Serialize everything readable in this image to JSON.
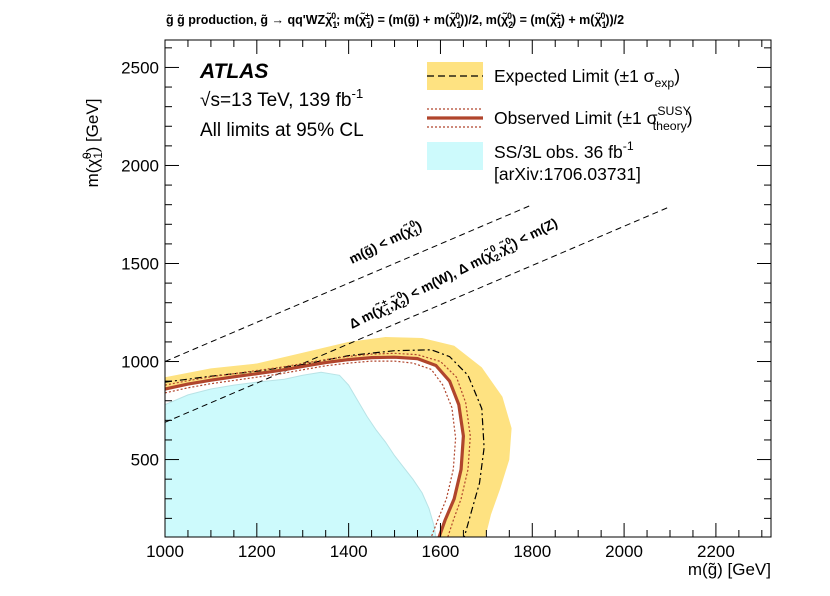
{
  "chart_data": {
    "type": "line",
    "title_parts": {
      "a": "g̃ g̃ production, g̃ → qq'WZχ̃",
      "a_sub": "1",
      "a_sup": "0",
      "b": "; m(χ̃",
      "b_sub": "1",
      "b_sup": "±",
      "c": ") = (m(g̃) + m(χ̃",
      "c_sub": "1",
      "c_sup": "0",
      "d": "))/2, m(χ̃",
      "d_sub": "2",
      "d_sup": "0",
      "e": ") = (m(χ̃",
      "e_sub": "1",
      "e_sup": "±",
      "f": ") + m(χ̃",
      "f_sub": "1",
      "f_sup": "0",
      "g": "))/2"
    },
    "xlabel": "m(g̃) [GeV]",
    "ylabel_parts": {
      "a": "m(χ̃",
      "a_sub": "1",
      "a_sup": "0",
      "b": ") [GeV]"
    },
    "xlim": [
      1000,
      2320
    ],
    "ylim": [
      105,
      2640
    ],
    "x_ticks": [
      1000,
      1200,
      1400,
      1600,
      1800,
      2000,
      2200
    ],
    "y_ticks": [
      500,
      1000,
      1500,
      2000,
      2500
    ],
    "x_minor_step": 50,
    "y_minor_step": 100,
    "atlas_label": "ATLAS",
    "energy_label_parts": {
      "root": "√",
      "s": "s=13 TeV, 139 fb",
      "sup": "-1"
    },
    "cl_label": "All limits at 95% CL",
    "legend": {
      "expected_main": "Expected Limit (±1 σ",
      "expected_sub": "exp",
      "expected_end": ")",
      "observed_main": "Observed Limit (±1 σ",
      "observed_sup": "SUSY",
      "observed_sub": "theory",
      "observed_end": ")",
      "ss3l_line1": "SS/3L obs. 36 fb",
      "ss3l_sup": "-1",
      "ss3l_line2": "[arXiv:1706.03731]"
    },
    "annotations": {
      "diag1_parts": {
        "a": "m(g̃) < m(χ̃",
        "a_sub": "1",
        "a_sup": "0",
        "b": ")"
      },
      "diag2_parts": {
        "a": "Δ m(χ̃",
        "a_sub": "1",
        "a_sup": "±",
        "b": ",χ̃",
        "b_sub": "2",
        "b_sup": "0",
        "c": ") < m(W), Δ m(χ̃",
        "c_sub": "2",
        "c_sup": "0",
        "d": ",χ̃",
        "d_sub": "1",
        "d_sup": "0",
        "e": ") < m(Z)"
      }
    },
    "colors": {
      "band": "#fee281",
      "observed": "#b0452c",
      "ss3l": "#cdfafc",
      "axis": "#000000"
    },
    "series": [
      {
        "name": "Observed Limit",
        "points": [
          [
            1000,
            860
          ],
          [
            1050,
            885
          ],
          [
            1100,
            905
          ],
          [
            1150,
            922
          ],
          [
            1200,
            938
          ],
          [
            1250,
            955
          ],
          [
            1300,
            975
          ],
          [
            1350,
            995
          ],
          [
            1400,
            1010
          ],
          [
            1450,
            1020
          ],
          [
            1500,
            1022
          ],
          [
            1550,
            1015
          ],
          [
            1590,
            980
          ],
          [
            1620,
            900
          ],
          [
            1640,
            780
          ],
          [
            1650,
            620
          ],
          [
            1645,
            450
          ],
          [
            1630,
            300
          ],
          [
            1610,
            190
          ],
          [
            1597,
            105
          ]
        ]
      },
      {
        "name": "Observed Limit +1σ theory",
        "points": [
          [
            1000,
            880
          ],
          [
            1050,
            902
          ],
          [
            1100,
            922
          ],
          [
            1150,
            938
          ],
          [
            1200,
            954
          ],
          [
            1250,
            970
          ],
          [
            1300,
            990
          ],
          [
            1350,
            1010
          ],
          [
            1400,
            1026
          ],
          [
            1450,
            1038
          ],
          [
            1500,
            1042
          ],
          [
            1550,
            1035
          ],
          [
            1600,
            1000
          ],
          [
            1635,
            920
          ],
          [
            1655,
            790
          ],
          [
            1665,
            620
          ],
          [
            1660,
            450
          ],
          [
            1645,
            300
          ],
          [
            1628,
            190
          ],
          [
            1616,
            105
          ]
        ]
      },
      {
        "name": "Observed Limit -1σ theory",
        "points": [
          [
            1000,
            840
          ],
          [
            1050,
            866
          ],
          [
            1100,
            887
          ],
          [
            1150,
            904
          ],
          [
            1200,
            920
          ],
          [
            1250,
            937
          ],
          [
            1300,
            958
          ],
          [
            1350,
            978
          ],
          [
            1400,
            992
          ],
          [
            1450,
            1002
          ],
          [
            1500,
            1002
          ],
          [
            1540,
            992
          ],
          [
            1580,
            960
          ],
          [
            1605,
            880
          ],
          [
            1625,
            765
          ],
          [
            1633,
            610
          ],
          [
            1628,
            450
          ],
          [
            1613,
            300
          ],
          [
            1594,
            190
          ],
          [
            1580,
            105
          ]
        ]
      },
      {
        "name": "Expected Limit",
        "points": [
          [
            1000,
            895
          ],
          [
            1100,
            925
          ],
          [
            1200,
            950
          ],
          [
            1300,
            985
          ],
          [
            1400,
            1030
          ],
          [
            1500,
            1055
          ],
          [
            1580,
            1060
          ],
          [
            1620,
            1025
          ],
          [
            1660,
            930
          ],
          [
            1690,
            760
          ],
          [
            1695,
            560
          ],
          [
            1685,
            380
          ],
          [
            1668,
            240
          ],
          [
            1652,
            105
          ]
        ]
      },
      {
        "name": "Expected band upper",
        "points": [
          [
            1000,
            920
          ],
          [
            1100,
            965
          ],
          [
            1200,
            990
          ],
          [
            1300,
            1045
          ],
          [
            1400,
            1100
          ],
          [
            1480,
            1125
          ],
          [
            1560,
            1120
          ],
          [
            1630,
            1080
          ],
          [
            1690,
            970
          ],
          [
            1735,
            820
          ],
          [
            1755,
            660
          ],
          [
            1750,
            500
          ],
          [
            1730,
            350
          ],
          [
            1710,
            220
          ],
          [
            1698,
            105
          ]
        ]
      },
      {
        "name": "Expected band lower",
        "points": [
          [
            1597,
            105
          ],
          [
            1610,
            190
          ],
          [
            1630,
            300
          ],
          [
            1645,
            450
          ],
          [
            1650,
            620
          ],
          [
            1640,
            780
          ],
          [
            1620,
            900
          ],
          [
            1590,
            980
          ],
          [
            1550,
            1015
          ],
          [
            1500,
            1022
          ],
          [
            1450,
            1020
          ],
          [
            1400,
            1010
          ],
          [
            1350,
            995
          ],
          [
            1300,
            975
          ],
          [
            1250,
            955
          ],
          [
            1200,
            938
          ],
          [
            1150,
            922
          ],
          [
            1100,
            905
          ],
          [
            1050,
            885
          ],
          [
            1000,
            860
          ]
        ]
      },
      {
        "name": "SS/3L obs. 36 fb-1",
        "points": [
          [
            1000,
            105
          ],
          [
            1000,
            780
          ],
          [
            1050,
            830
          ],
          [
            1100,
            860
          ],
          [
            1150,
            880
          ],
          [
            1200,
            895
          ],
          [
            1260,
            910
          ],
          [
            1300,
            930
          ],
          [
            1340,
            945
          ],
          [
            1380,
            930
          ],
          [
            1400,
            880
          ],
          [
            1420,
            800
          ],
          [
            1440,
            720
          ],
          [
            1460,
            650
          ],
          [
            1480,
            590
          ],
          [
            1500,
            520
          ],
          [
            1520,
            460
          ],
          [
            1540,
            400
          ],
          [
            1560,
            330
          ],
          [
            1575,
            250
          ],
          [
            1585,
            170
          ],
          [
            1590,
            105
          ]
        ]
      },
      {
        "name": "m(g̃) < m(χ̃1 0) diagonal",
        "points": [
          [
            1000,
            1000
          ],
          [
            1800,
            1800
          ]
        ]
      },
      {
        "name": "ΔM < m(W) diagonal",
        "points": [
          [
            1000,
            690
          ],
          [
            2100,
            1790
          ]
        ]
      }
    ]
  }
}
